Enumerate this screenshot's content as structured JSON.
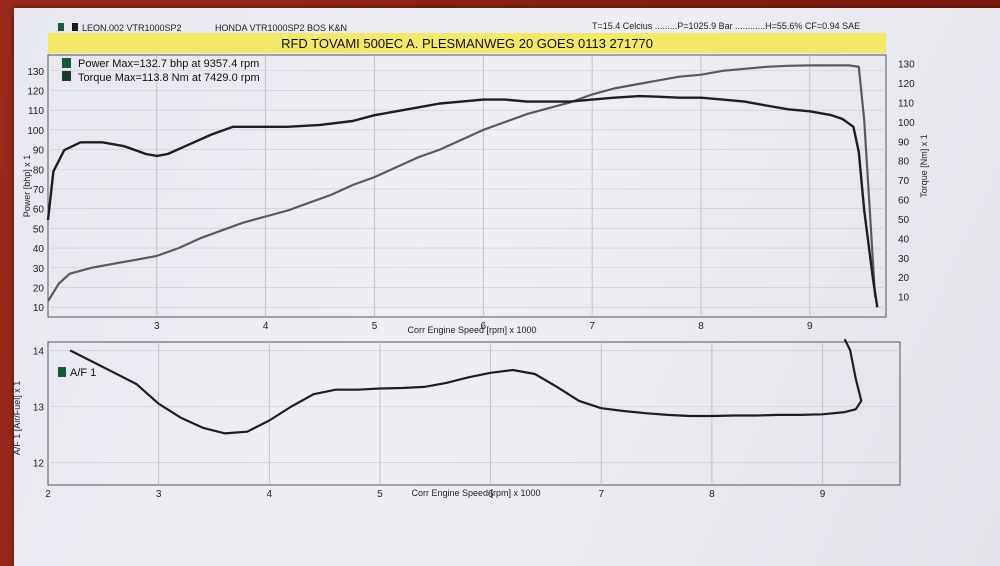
{
  "header": {
    "run_id": "LEON.002 VTR1000SP2",
    "bike": "HONDA VTR1000SP2 BOS K&N",
    "conditions": "T=15.4 Celcius .........P=1025.9 Bar ............H=55.6% CF=0.94 SAE",
    "banner": "RFD TOVAMI 500EC  A. PLESMANWEG 20 GOES 0113 271770",
    "banner_color": "#f2e86a"
  },
  "chart_data": [
    {
      "type": "line",
      "xlabel": "Corr Engine Speed [rpm] x 1000",
      "ylabel": "Power [bhp] x 1",
      "y2label": "Torque [Nm] x 1",
      "xlim": [
        2.0,
        9.7
      ],
      "ylim": [
        5,
        138
      ],
      "y2lim": [
        0,
        135
      ],
      "x_ticks": [
        "3",
        "4",
        "5",
        "6",
        "7",
        "8",
        "9"
      ],
      "y_ticks": [
        "10",
        "20",
        "30",
        "40",
        "50",
        "60",
        "70",
        "80",
        "90",
        "100",
        "110",
        "120",
        "130"
      ],
      "y2_ticks": [
        "10",
        "20",
        "30",
        "40",
        "50",
        "60",
        "70",
        "80",
        "90",
        "100",
        "110",
        "120",
        "130"
      ],
      "grid": true,
      "legend_position": "top-left",
      "series": [
        {
          "name": "Power Max=132.7 bhp at 9357.4 rpm",
          "axis": "left",
          "color": "#5a5a5a",
          "points": [
            [
              2.0,
              13
            ],
            [
              2.1,
              22
            ],
            [
              2.2,
              27
            ],
            [
              2.4,
              30
            ],
            [
              2.6,
              32
            ],
            [
              2.8,
              34
            ],
            [
              3.0,
              36
            ],
            [
              3.2,
              40
            ],
            [
              3.4,
              45
            ],
            [
              3.6,
              49
            ],
            [
              3.8,
              53
            ],
            [
              4.0,
              56
            ],
            [
              4.2,
              59
            ],
            [
              4.4,
              63
            ],
            [
              4.6,
              67
            ],
            [
              4.8,
              72
            ],
            [
              5.0,
              76
            ],
            [
              5.2,
              81
            ],
            [
              5.4,
              86
            ],
            [
              5.6,
              90
            ],
            [
              5.8,
              95
            ],
            [
              6.0,
              100
            ],
            [
              6.2,
              104
            ],
            [
              6.4,
              108
            ],
            [
              6.6,
              111
            ],
            [
              6.8,
              114
            ],
            [
              7.0,
              118
            ],
            [
              7.2,
              121
            ],
            [
              7.4,
              123
            ],
            [
              7.6,
              125
            ],
            [
              7.8,
              127
            ],
            [
              8.0,
              128
            ],
            [
              8.2,
              130
            ],
            [
              8.4,
              131
            ],
            [
              8.6,
              132
            ],
            [
              8.8,
              132.5
            ],
            [
              9.0,
              132.7
            ],
            [
              9.2,
              132.7
            ],
            [
              9.36,
              132.7
            ],
            [
              9.45,
              132
            ],
            [
              9.5,
              105
            ],
            [
              9.55,
              60
            ],
            [
              9.6,
              15
            ]
          ]
        },
        {
          "name": "Torque  Max=113.8 Nm at 7429.0 rpm",
          "axis": "right",
          "color": "#1e1e1e",
          "points": [
            [
              2.0,
              50
            ],
            [
              2.05,
              75
            ],
            [
              2.15,
              86
            ],
            [
              2.3,
              90
            ],
            [
              2.5,
              90
            ],
            [
              2.7,
              88
            ],
            [
              2.9,
              84
            ],
            [
              3.0,
              83
            ],
            [
              3.1,
              84
            ],
            [
              3.3,
              89
            ],
            [
              3.5,
              94
            ],
            [
              3.7,
              98
            ],
            [
              3.9,
              98
            ],
            [
              4.2,
              98
            ],
            [
              4.5,
              99
            ],
            [
              4.8,
              101
            ],
            [
              5.0,
              104
            ],
            [
              5.2,
              106
            ],
            [
              5.4,
              108
            ],
            [
              5.6,
              110
            ],
            [
              5.8,
              111
            ],
            [
              6.0,
              112
            ],
            [
              6.2,
              112
            ],
            [
              6.4,
              111
            ],
            [
              6.6,
              111
            ],
            [
              6.8,
              111
            ],
            [
              7.0,
              112
            ],
            [
              7.2,
              113
            ],
            [
              7.43,
              113.8
            ],
            [
              7.6,
              113.5
            ],
            [
              7.8,
              113
            ],
            [
              8.0,
              113
            ],
            [
              8.2,
              112
            ],
            [
              8.4,
              111
            ],
            [
              8.6,
              109
            ],
            [
              8.8,
              107
            ],
            [
              9.0,
              106
            ],
            [
              9.2,
              104
            ],
            [
              9.3,
              102
            ],
            [
              9.4,
              98
            ],
            [
              9.45,
              85
            ],
            [
              9.5,
              55
            ],
            [
              9.58,
              20
            ],
            [
              9.62,
              5
            ]
          ]
        }
      ]
    },
    {
      "type": "line",
      "xlabel": "Corr Engine Speed [rpm] x 1000",
      "ylabel": "A/F 1 [Air/Fuel] x 1",
      "xlim": [
        2.0,
        9.7
      ],
      "ylim": [
        11.6,
        14.15
      ],
      "x_ticks": [
        "2",
        "3",
        "4",
        "5",
        "6",
        "7",
        "8",
        "9"
      ],
      "y_ticks": [
        "12",
        "13",
        "14"
      ],
      "grid": true,
      "legend_position": "top-left",
      "series": [
        {
          "name": "A/F 1",
          "color": "#1e1e1e",
          "points": [
            [
              2.2,
              14.0
            ],
            [
              2.4,
              13.8
            ],
            [
              2.6,
              13.6
            ],
            [
              2.8,
              13.4
            ],
            [
              3.0,
              13.05
            ],
            [
              3.2,
              12.8
            ],
            [
              3.4,
              12.62
            ],
            [
              3.6,
              12.52
            ],
            [
              3.8,
              12.55
            ],
            [
              4.0,
              12.75
            ],
            [
              4.2,
              13.0
            ],
            [
              4.4,
              13.22
            ],
            [
              4.6,
              13.3
            ],
            [
              4.8,
              13.3
            ],
            [
              5.0,
              13.32
            ],
            [
              5.2,
              13.33
            ],
            [
              5.4,
              13.35
            ],
            [
              5.6,
              13.42
            ],
            [
              5.8,
              13.52
            ],
            [
              6.0,
              13.6
            ],
            [
              6.2,
              13.65
            ],
            [
              6.4,
              13.58
            ],
            [
              6.6,
              13.35
            ],
            [
              6.8,
              13.1
            ],
            [
              7.0,
              12.97
            ],
            [
              7.2,
              12.92
            ],
            [
              7.4,
              12.88
            ],
            [
              7.6,
              12.85
            ],
            [
              7.8,
              12.83
            ],
            [
              8.0,
              12.83
            ],
            [
              8.2,
              12.84
            ],
            [
              8.4,
              12.84
            ],
            [
              8.6,
              12.85
            ],
            [
              8.8,
              12.85
            ],
            [
              9.0,
              12.86
            ],
            [
              9.2,
              12.9
            ],
            [
              9.3,
              12.95
            ],
            [
              9.35,
              13.1
            ],
            [
              9.3,
              13.5
            ],
            [
              9.25,
              14.0
            ],
            [
              9.2,
              14.2
            ]
          ]
        }
      ]
    }
  ]
}
